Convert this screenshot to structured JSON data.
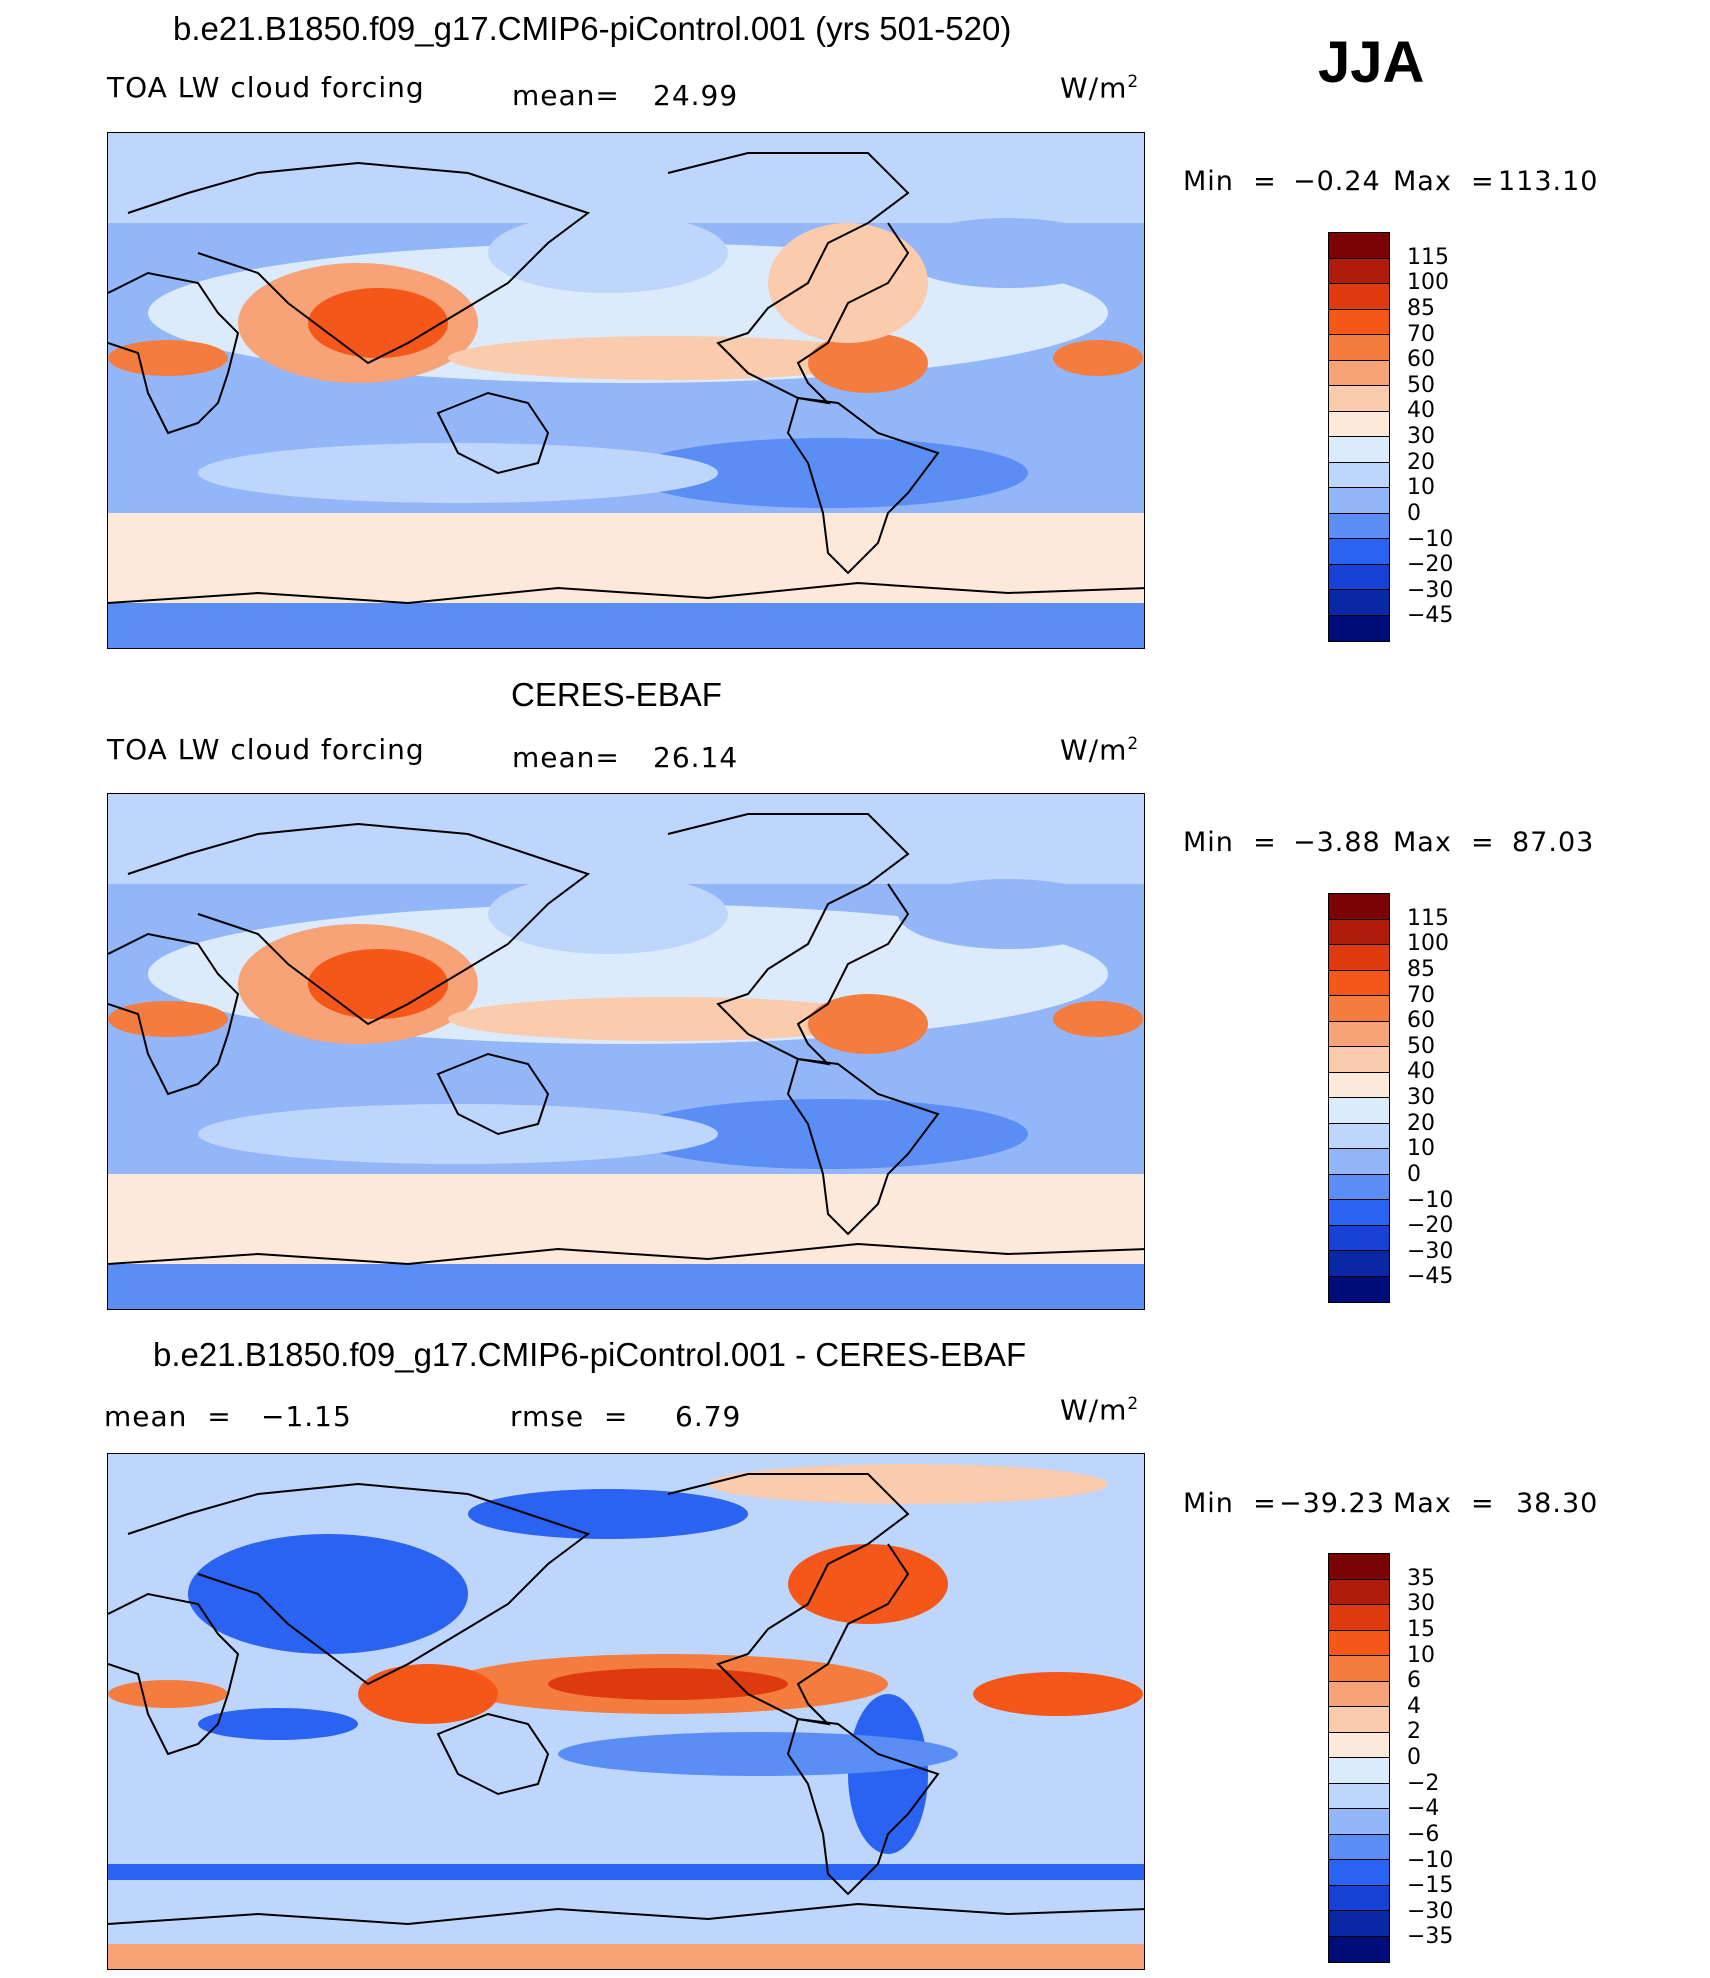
{
  "season": "JJA",
  "units": "W/m",
  "units_sup": "2",
  "panels": [
    {
      "title": "b.e21.B1850.f09_g17.CMIP6-piControl.001 (yrs 501-520)",
      "variable": "TOA LW cloud forcing",
      "stat1_label": "mean=",
      "stat1_value": "24.99",
      "min_label": "Min  =",
      "min_value": "−0.24",
      "max_label": "Max  =",
      "max_value": "113.10",
      "kind": "model"
    },
    {
      "title": "CERES-EBAF",
      "variable": "TOA LW cloud forcing",
      "stat1_label": "mean=",
      "stat1_value": "26.14",
      "min_label": "Min  =",
      "min_value": "−3.88",
      "max_label": "Max  =",
      "max_value": "87.03",
      "kind": "obs"
    },
    {
      "title": "b.e21.B1850.f09_g17.CMIP6-piControl.001 - CERES-EBAF",
      "stat1_label": "mean  =",
      "stat1_value": "−1.15",
      "stat2_label": "rmse  =",
      "stat2_value": "6.79",
      "min_label": "Min  =",
      "min_value": "−39.23",
      "max_label": "Max  =",
      "max_value": "38.30",
      "kind": "diff"
    }
  ],
  "colorbar_main": {
    "labels": [
      "115",
      "100",
      "85",
      "70",
      "60",
      "50",
      "40",
      "30",
      "20",
      "10",
      "0",
      "−10",
      "−20",
      "−30",
      "−45"
    ],
    "colors": [
      "#7a0403",
      "#b01c0a",
      "#dd3a10",
      "#f5561a",
      "#f57c3f",
      "#f7a277",
      "#fbcbad",
      "#fde9d9",
      "#dcebfb",
      "#bed6fb",
      "#93b6f8",
      "#5b8ef5",
      "#2a62f2",
      "#1542d4",
      "#0a28a6",
      "#000c78"
    ]
  },
  "colorbar_diff": {
    "labels": [
      "35",
      "30",
      "15",
      "10",
      "6",
      "4",
      "2",
      "0",
      "−2",
      "−4",
      "−6",
      "−10",
      "−15",
      "−30",
      "−35"
    ],
    "colors": [
      "#7a0403",
      "#b01c0a",
      "#dd3a10",
      "#f5561a",
      "#f57c3f",
      "#f7a277",
      "#fbcbad",
      "#fde9d9",
      "#dcebfb",
      "#bed6fb",
      "#93b6f8",
      "#5b8ef5",
      "#2a62f2",
      "#1542d4",
      "#0a28a6",
      "#000c78"
    ]
  }
}
